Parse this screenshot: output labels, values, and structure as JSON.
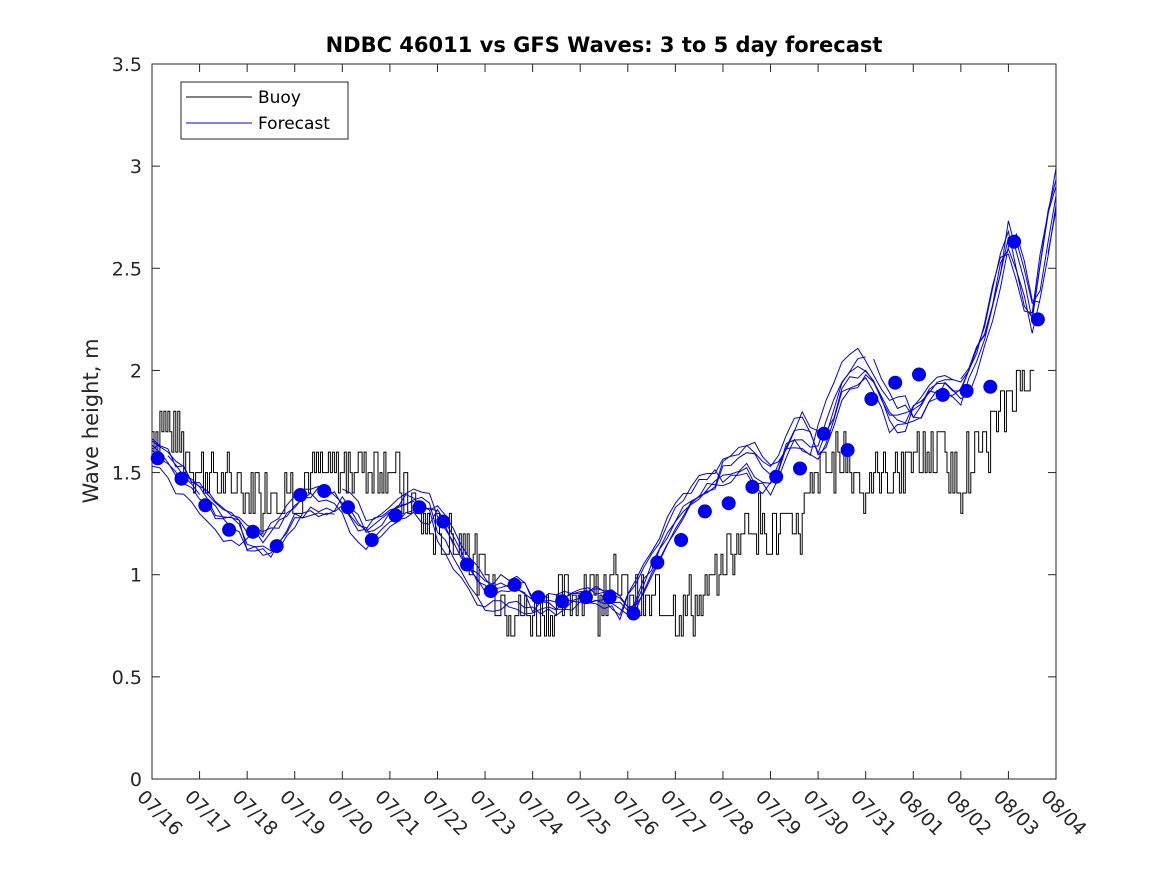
{
  "chart_data": {
    "type": "line",
    "title": "NDBC 46011 vs GFS Waves: 3 to 5 day forecast",
    "xlabel": "",
    "ylabel": "Wave height, m",
    "ylim": [
      0,
      3.5
    ],
    "yticks": [
      0,
      0.5,
      1,
      1.5,
      2,
      2.5,
      3,
      3.5
    ],
    "ytick_labels": [
      "0",
      "0.5",
      "1",
      "1.5",
      "2",
      "2.5",
      "3",
      "3.5"
    ],
    "xlim": [
      0,
      19
    ],
    "xtick_labels": [
      "07/16",
      "07/17",
      "07/18",
      "07/19",
      "07/20",
      "07/21",
      "07/22",
      "07/23",
      "07/24",
      "07/25",
      "07/26",
      "07/27",
      "07/28",
      "07/29",
      "07/30",
      "07/31",
      "08/01",
      "08/02",
      "08/03",
      "08/04"
    ],
    "grid": false,
    "legend": {
      "location": "top-left",
      "entries": [
        "Buoy",
        "Forecast"
      ]
    },
    "colors": {
      "buoy": "#000000",
      "forecast": "#0000ee",
      "markers": "#0000ee"
    },
    "series": [
      {
        "name": "Buoy",
        "x": [
          0,
          0.5,
          1,
          1.5,
          2,
          2.5,
          3,
          3.5,
          4,
          4.5,
          5,
          5.5,
          6,
          6.5,
          7,
          7.5,
          8,
          8.5,
          9,
          9.5,
          10,
          10.5,
          11,
          11.5,
          12,
          12.5,
          13,
          13.5,
          14,
          14.5,
          15,
          15.5,
          16,
          16.5,
          17,
          17.5,
          18,
          18.5
        ],
        "y": [
          1.75,
          1.7,
          1.5,
          1.45,
          1.4,
          1.45,
          1.4,
          1.5,
          1.5,
          1.55,
          1.55,
          1.3,
          1.15,
          1.2,
          0.95,
          0.85,
          0.78,
          0.85,
          0.92,
          0.95,
          0.93,
          0.85,
          0.85,
          0.85,
          1.05,
          1.25,
          1.25,
          1.15,
          1.5,
          1.6,
          1.45,
          1.5,
          1.55,
          1.6,
          1.45,
          1.65,
          1.85,
          2.05
        ]
      },
      {
        "name": "Forecast",
        "x": [
          0,
          0.5,
          1,
          1.5,
          2,
          2.5,
          3,
          3.5,
          4,
          4.5,
          5,
          5.5,
          6,
          6.5,
          7,
          7.5,
          8,
          8.5,
          9,
          9.5,
          10,
          10.5,
          11,
          11.5,
          12,
          12.5,
          13,
          13.5,
          14,
          14.5,
          15,
          15.5,
          16,
          16.5,
          17,
          17.5,
          18,
          18.5,
          19
        ],
        "y": [
          1.6,
          1.48,
          1.36,
          1.24,
          1.2,
          1.17,
          1.35,
          1.38,
          1.36,
          1.2,
          1.3,
          1.38,
          1.28,
          1.05,
          0.9,
          0.93,
          0.88,
          0.88,
          0.92,
          0.92,
          0.83,
          1.05,
          1.3,
          1.42,
          1.5,
          1.58,
          1.45,
          1.72,
          1.62,
          1.95,
          2.05,
          1.78,
          1.8,
          1.95,
          1.9,
          2.2,
          2.7,
          2.22,
          2.95
        ]
      },
      {
        "name": "markers",
        "x": [
          0.12,
          0.62,
          1.12,
          1.62,
          2.12,
          2.62,
          3.12,
          3.62,
          4.12,
          4.62,
          5.12,
          5.62,
          6.12,
          6.62,
          7.12,
          7.62,
          8.12,
          8.62,
          9.12,
          9.62,
          10.12,
          10.62,
          11.12,
          11.62,
          12.12,
          12.62,
          13.12,
          13.62,
          14.12,
          14.62,
          15.12,
          15.62,
          16.12,
          16.62,
          17.12,
          17.62,
          18.12,
          18.62
        ],
        "y": [
          1.57,
          1.47,
          1.34,
          1.22,
          1.21,
          1.14,
          1.39,
          1.41,
          1.33,
          1.17,
          1.29,
          1.33,
          1.26,
          1.05,
          0.92,
          0.95,
          0.89,
          0.87,
          0.89,
          0.89,
          0.81,
          1.06,
          1.17,
          1.31,
          1.35,
          1.43,
          1.48,
          1.52,
          1.69,
          1.61,
          1.86,
          1.94,
          1.98,
          1.88,
          1.9,
          1.92,
          2.63,
          2.25
        ]
      }
    ]
  }
}
